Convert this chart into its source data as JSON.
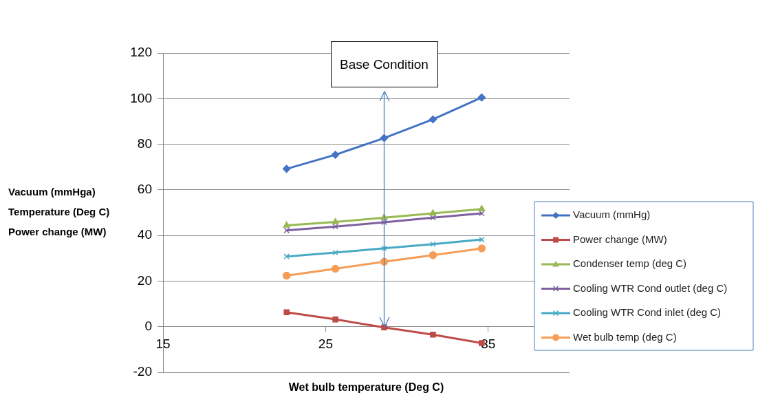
{
  "chart_data": {
    "type": "line",
    "xlabel": "Wet bulb temperature (Deg C)",
    "ylabel": "Vacuum (mmHga)\nTemperature (Deg C)\nPower change (MW)",
    "x": [
      22.6,
      25.6,
      28.6,
      31.6,
      34.6
    ],
    "xlim": [
      15,
      40
    ],
    "xticks": [
      15,
      25,
      35
    ],
    "ylim": [
      -20,
      120
    ],
    "yticks": [
      -20,
      0,
      20,
      40,
      60,
      80,
      100,
      120
    ],
    "grid": "y",
    "legend": "right",
    "ref_lines": [
      {
        "axis": "x",
        "value": 28.6,
        "label": "Base Condition",
        "color": "#4a7ebb"
      }
    ],
    "series": [
      {
        "name": "Vacuum (mmHg)",
        "color": "#4472c4",
        "marker": "diamond",
        "values": [
          69.2,
          75.4,
          82.7,
          90.9,
          100.5
        ]
      },
      {
        "name": "Power change (MW)",
        "color": "#be4b48",
        "marker": "square",
        "values": [
          6.3,
          3.2,
          -0.3,
          -3.5,
          -7.2
        ]
      },
      {
        "name": "Condenser temp (deg C)",
        "color": "#98b954",
        "marker": "triangle",
        "values": [
          44.4,
          45.9,
          47.8,
          49.7,
          51.6
        ]
      },
      {
        "name": "Cooling WTR Cond outlet (deg C)",
        "color": "#7d60a0",
        "marker": "cross",
        "values": [
          42.2,
          43.9,
          45.8,
          47.8,
          49.7
        ]
      },
      {
        "name": "Cooling WTR Cond inlet (deg C)",
        "color": "#46aac5",
        "marker": "cross",
        "values": [
          30.8,
          32.5,
          34.4,
          36.2,
          38.2
        ]
      },
      {
        "name": "Wet bulb temp (deg C)",
        "color": "#f59d56",
        "marker": "circle",
        "values": [
          22.4,
          25.4,
          28.5,
          31.4,
          34.3
        ]
      }
    ]
  }
}
